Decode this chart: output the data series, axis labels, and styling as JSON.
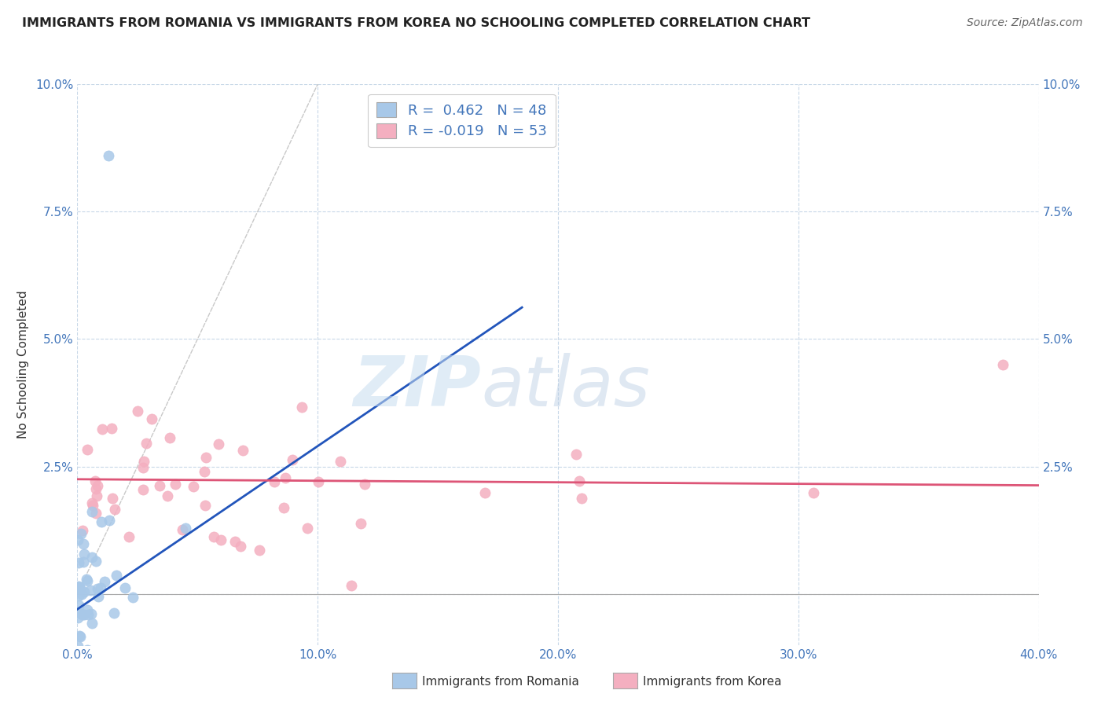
{
  "title": "IMMIGRANTS FROM ROMANIA VS IMMIGRANTS FROM KOREA NO SCHOOLING COMPLETED CORRELATION CHART",
  "source": "Source: ZipAtlas.com",
  "ylabel": "No Schooling Completed",
  "xlim": [
    0.0,
    0.4
  ],
  "ylim": [
    -0.01,
    0.1
  ],
  "plot_ylim": [
    0.0,
    0.1
  ],
  "xticks": [
    0.0,
    0.1,
    0.2,
    0.3,
    0.4
  ],
  "xtick_labels": [
    "0.0%",
    "10.0%",
    "20.0%",
    "30.0%",
    "40.0%"
  ],
  "yticks": [
    0.0,
    0.025,
    0.05,
    0.075,
    0.1
  ],
  "ytick_labels": [
    "",
    "2.5%",
    "5.0%",
    "7.5%",
    "10.0%"
  ],
  "romania_color": "#a8c8e8",
  "korea_color": "#f4afc0",
  "romania_line_color": "#2255bb",
  "korea_line_color": "#dd5577",
  "diagonal_color": "#bbbbbb",
  "R_romania": 0.462,
  "N_romania": 48,
  "R_korea": -0.019,
  "N_korea": 53,
  "legend_label_romania": "Immigrants from Romania",
  "legend_label_korea": "Immigrants from Korea",
  "watermark_zip": "ZIP",
  "watermark_atlas": "atlas",
  "background_color": "#ffffff",
  "grid_color": "#c8d8e8",
  "title_color": "#222222",
  "source_color": "#666666",
  "tick_color": "#4477bb",
  "romania_slope": 0.32,
  "romania_intercept": -0.003,
  "romania_line_x0": 0.0,
  "romania_line_x1": 0.185,
  "korea_slope": -0.003,
  "korea_intercept": 0.0225,
  "korea_line_x0": 0.0,
  "korea_line_x1": 0.4
}
